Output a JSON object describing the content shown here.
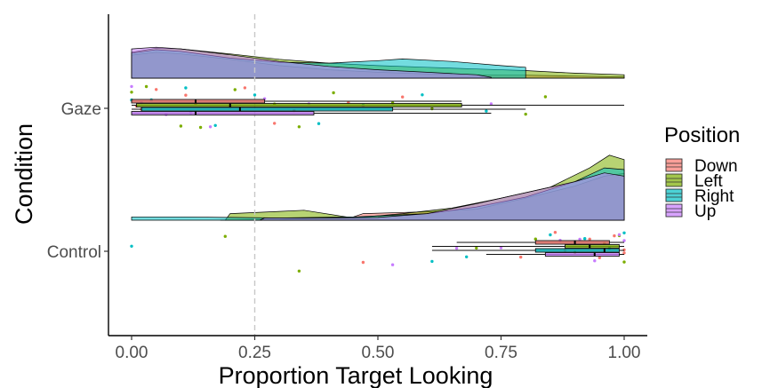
{
  "chart_data": {
    "type": "raincloud",
    "xlabel": "Proportion Target Looking",
    "ylabel": "Condition",
    "xlim": [
      0,
      1
    ],
    "x_ticks": [
      "0.00",
      "0.25",
      "0.50",
      "0.75",
      "1.00"
    ],
    "reference_line_x": 0.25,
    "categories": [
      "Gaze",
      "Control"
    ],
    "legend": {
      "title": "Position",
      "placement": "right",
      "entries": [
        {
          "name": "Down",
          "color": "#F8766D"
        },
        {
          "name": "Left",
          "color": "#7CAE00"
        },
        {
          "name": "Right",
          "color": "#00BFC4"
        },
        {
          "name": "Up",
          "color": "#C77CFF"
        }
      ]
    },
    "series": [
      {
        "name": "Down",
        "color": "#F8766D",
        "boxplots": {
          "Gaze": {
            "min": 0,
            "q1": 0,
            "median": 0.13,
            "q3": 0.27,
            "max": 0.67
          },
          "Control": {
            "min": 0.66,
            "q1": 0.82,
            "median": 0.9,
            "q3": 0.97,
            "max": 1.0
          }
        },
        "points": {
          "Gaze": [
            0.01,
            0.02,
            0.05,
            0.11,
            0.13,
            0.2,
            0.23,
            0.29,
            0.33,
            0.44,
            0.55
          ],
          "Control": [
            0.47,
            0.79,
            0.86,
            0.88,
            0.93,
            0.95,
            0.98,
            1.0,
            1.0
          ]
        },
        "density": {
          "Gaze": [
            [
              0,
              0.55
            ],
            [
              0.05,
              0.62
            ],
            [
              0.1,
              0.58
            ],
            [
              0.2,
              0.45
            ],
            [
              0.3,
              0.3
            ],
            [
              0.4,
              0.2
            ],
            [
              0.5,
              0.14
            ],
            [
              0.6,
              0.1
            ],
            [
              0.7,
              0.08
            ],
            [
              0.8,
              0.07
            ],
            [
              0.9,
              0.05
            ],
            [
              1,
              0.03
            ]
          ],
          "Control": [
            [
              0.18,
              0
            ],
            [
              0.3,
              0.01
            ],
            [
              0.45,
              0.06
            ],
            [
              0.47,
              0.12
            ],
            [
              0.55,
              0.14
            ],
            [
              0.62,
              0.16
            ],
            [
              0.7,
              0.2
            ],
            [
              0.8,
              0.4
            ],
            [
              0.9,
              0.62
            ],
            [
              0.96,
              0.8
            ],
            [
              1,
              0.85
            ]
          ]
        }
      },
      {
        "name": "Left",
        "color": "#7CAE00",
        "boxplots": {
          "Gaze": {
            "min": 0,
            "q1": 0.01,
            "median": 0.2,
            "q3": 0.67,
            "max": 1.0
          },
          "Control": {
            "min": 0.61,
            "q1": 0.88,
            "median": 0.93,
            "q3": 0.99,
            "max": 1.0
          }
        },
        "points": {
          "Gaze": [
            0.0,
            0.03,
            0.1,
            0.14,
            0.21,
            0.29,
            0.34,
            0.41,
            0.53,
            0.61,
            0.8,
            0.84
          ],
          "Control": [
            0.19,
            0.34,
            0.7,
            0.82,
            0.9,
            0.96,
            0.99,
            1.0
          ]
        },
        "density": {
          "Gaze": [
            [
              0,
              0.62
            ],
            [
              0.05,
              0.72
            ],
            [
              0.1,
              0.7
            ],
            [
              0.2,
              0.58
            ],
            [
              0.3,
              0.45
            ],
            [
              0.4,
              0.36
            ],
            [
              0.5,
              0.3
            ],
            [
              0.6,
              0.26
            ],
            [
              0.7,
              0.22
            ],
            [
              0.8,
              0.18
            ],
            [
              0.9,
              0.12
            ],
            [
              1,
              0.08
            ]
          ],
          "Control": [
            [
              0.19,
              0
            ],
            [
              0.2,
              0.12
            ],
            [
              0.3,
              0.16
            ],
            [
              0.35,
              0.18
            ],
            [
              0.45,
              0.04
            ],
            [
              0.55,
              0.12
            ],
            [
              0.65,
              0.22
            ],
            [
              0.75,
              0.4
            ],
            [
              0.85,
              0.6
            ],
            [
              0.93,
              0.95
            ],
            [
              0.97,
              1.18
            ],
            [
              1,
              1.1
            ]
          ]
        }
      },
      {
        "name": "Right",
        "color": "#00BFC4",
        "boxplots": {
          "Gaze": {
            "min": 0,
            "q1": 0.02,
            "median": 0.22,
            "q3": 0.53,
            "max": 0.8
          },
          "Control": {
            "min": 0.61,
            "q1": 0.82,
            "median": 0.96,
            "q3": 0.99,
            "max": 1.0
          }
        },
        "points": {
          "Gaze": [
            0.0,
            0.04,
            0.11,
            0.17,
            0.25,
            0.38,
            0.47,
            0.59,
            0.72
          ],
          "Control": [
            0.0,
            0.61,
            0.68,
            0.85,
            0.92,
            0.97,
            1.0
          ]
        },
        "density": {
          "Gaze": [
            [
              0,
              0.6
            ],
            [
              0.05,
              0.68
            ],
            [
              0.1,
              0.64
            ],
            [
              0.2,
              0.48
            ],
            [
              0.3,
              0.38
            ],
            [
              0.4,
              0.36
            ],
            [
              0.5,
              0.42
            ],
            [
              0.55,
              0.46
            ],
            [
              0.65,
              0.4
            ],
            [
              0.75,
              0.3
            ],
            [
              0.8,
              0.26
            ]
          ],
          "Control": [
            [
              0,
              0.06
            ],
            [
              0.1,
              0.06
            ],
            [
              0.2,
              0.05
            ],
            [
              0.3,
              0.04
            ],
            [
              0.45,
              0.06
            ],
            [
              0.6,
              0.12
            ],
            [
              0.7,
              0.24
            ],
            [
              0.8,
              0.42
            ],
            [
              0.9,
              0.7
            ],
            [
              0.96,
              0.95
            ],
            [
              1,
              0.92
            ]
          ]
        }
      },
      {
        "name": "Up",
        "color": "#C77CFF",
        "boxplots": {
          "Gaze": {
            "min": 0,
            "q1": 0,
            "median": 0.13,
            "q3": 0.37,
            "max": 0.73
          },
          "Control": {
            "min": 0.72,
            "q1": 0.84,
            "median": 0.94,
            "q3": 0.99,
            "max": 1.0
          }
        },
        "points": {
          "Gaze": [
            0.0,
            0.02,
            0.07,
            0.12,
            0.16,
            0.27,
            0.36,
            0.47,
            0.73
          ],
          "Control": [
            0.53,
            0.66,
            0.75,
            0.87,
            0.91,
            0.94,
            0.99,
            1.0
          ]
        },
        "density": {
          "Gaze": [
            [
              0,
              0.7
            ],
            [
              0.05,
              0.74
            ],
            [
              0.1,
              0.7
            ],
            [
              0.2,
              0.56
            ],
            [
              0.3,
              0.4
            ],
            [
              0.4,
              0.28
            ],
            [
              0.5,
              0.2
            ],
            [
              0.6,
              0.14
            ],
            [
              0.7,
              0.08
            ],
            [
              0.73,
              0.02
            ]
          ],
          "Control": [
            [
              0.26,
              0
            ],
            [
              0.27,
              0.04
            ],
            [
              0.4,
              0.04
            ],
            [
              0.5,
              0.05
            ],
            [
              0.6,
              0.12
            ],
            [
              0.7,
              0.3
            ],
            [
              0.8,
              0.5
            ],
            [
              0.9,
              0.7
            ],
            [
              0.96,
              0.86
            ],
            [
              1,
              0.8
            ]
          ]
        }
      }
    ]
  }
}
